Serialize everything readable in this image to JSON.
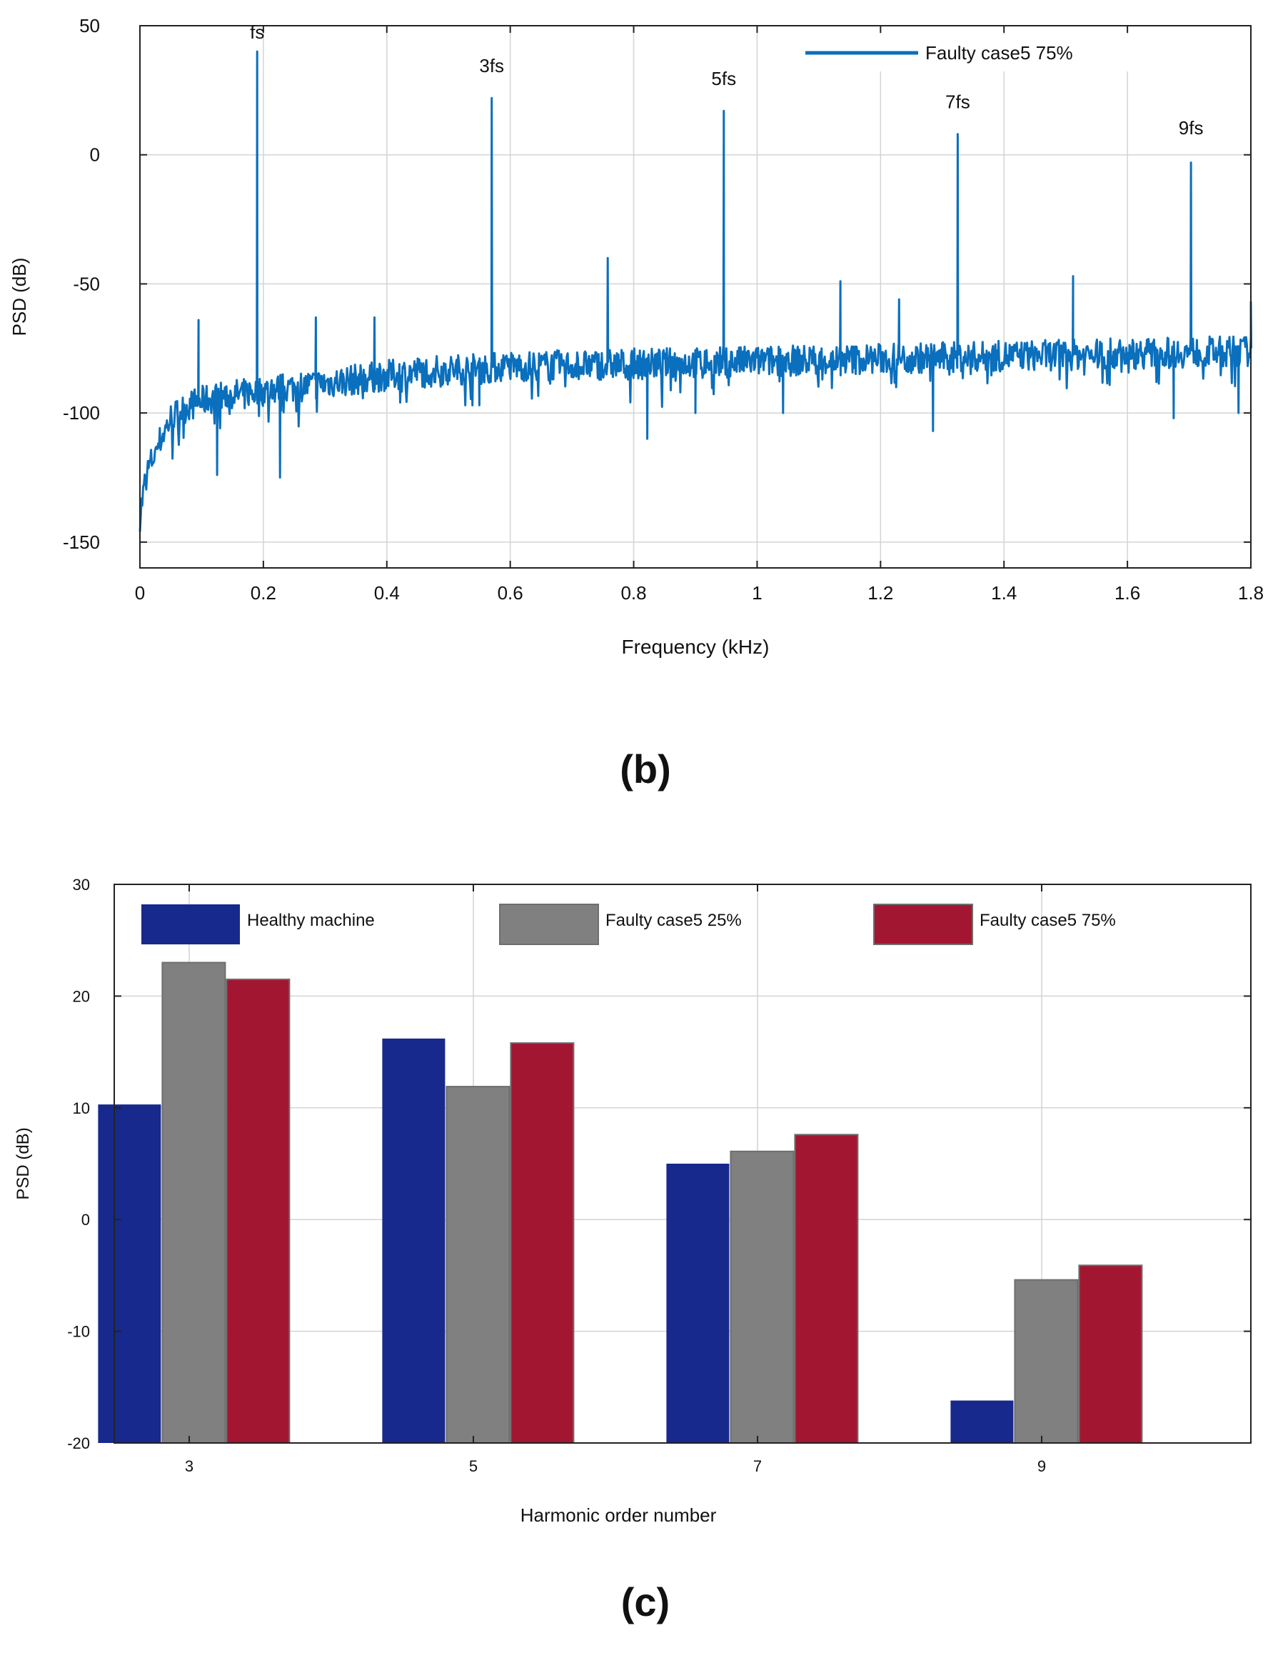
{
  "figure": {
    "panel_b_label": "(b)",
    "panel_c_label": "(c)"
  },
  "chart_data": [
    {
      "type": "line",
      "panel": "b",
      "title": "",
      "xlabel": "Frequency (kHz)",
      "ylabel": "PSD (dB)",
      "xlim": [
        0,
        1.8
      ],
      "ylim": [
        -160,
        50
      ],
      "xticks": [
        0,
        0.2,
        0.4,
        0.6,
        0.8,
        1,
        1.2,
        1.4,
        1.6,
        1.8
      ],
      "xtick_labels": [
        "0",
        "0.2",
        "0.4",
        "0.6",
        "0.8",
        "1",
        "1.2",
        "1.4",
        "1.6",
        "1.8"
      ],
      "yticks": [
        50,
        0,
        -50,
        -100,
        -150
      ],
      "ytick_labels": [
        "50",
        "0",
        "-50",
        "-100",
        "-150"
      ],
      "grid": true,
      "legend": {
        "position": "top-right"
      },
      "series": [
        {
          "name": "Faulty case5 75%",
          "color": "#0a6fbd",
          "baseline": [
            [
              0,
              -140
            ],
            [
              0.01,
              -124
            ],
            [
              0.03,
              -112
            ],
            [
              0.05,
              -102
            ],
            [
              0.08,
              -97
            ],
            [
              0.12,
              -94
            ],
            [
              0.18,
              -92
            ],
            [
              0.25,
              -90
            ],
            [
              0.35,
              -87
            ],
            [
              0.45,
              -84
            ],
            [
              0.6,
              -82
            ],
            [
              0.8,
              -81
            ],
            [
              1.0,
              -80
            ],
            [
              1.2,
              -79
            ],
            [
              1.4,
              -78
            ],
            [
              1.6,
              -77
            ],
            [
              1.8,
              -76
            ]
          ],
          "peaks": [
            {
              "x": 0.19,
              "y": 40
            },
            {
              "x": 0.57,
              "y": 22
            },
            {
              "x": 0.946,
              "y": 17
            },
            {
              "x": 1.325,
              "y": 8
            },
            {
              "x": 1.703,
              "y": -3
            },
            {
              "x": 0.758,
              "y": -40
            },
            {
              "x": 1.135,
              "y": -49
            },
            {
              "x": 1.512,
              "y": -47
            },
            {
              "x": 0.095,
              "y": -64
            },
            {
              "x": 0.285,
              "y": -63
            },
            {
              "x": 0.38,
              "y": -63
            },
            {
              "x": 1.23,
              "y": -56
            },
            {
              "x": 1.8,
              "y": -57
            }
          ],
          "dips": [
            {
              "x": 0.125,
              "y": -124
            },
            {
              "x": 0.227,
              "y": -125
            },
            {
              "x": 0.822,
              "y": -110
            },
            {
              "x": 1.285,
              "y": -107
            },
            {
              "x": 1.042,
              "y": -100
            },
            {
              "x": 1.675,
              "y": -102
            },
            {
              "x": 1.78,
              "y": -100
            },
            {
              "x": 0.55,
              "y": -97
            },
            {
              "x": 0.9,
              "y": -100
            }
          ]
        }
      ],
      "annotations": [
        {
          "text": "fs",
          "x": 0.19,
          "y": 45
        },
        {
          "text": "3fs",
          "x": 0.57,
          "y": 32
        },
        {
          "text": "5fs",
          "x": 0.946,
          "y": 27
        },
        {
          "text": "7fs",
          "x": 1.325,
          "y": 18
        },
        {
          "text": "9fs",
          "x": 1.703,
          "y": 8
        }
      ]
    },
    {
      "type": "bar",
      "panel": "c",
      "title": "",
      "xlabel": "Harmonic order number",
      "ylabel": "PSD (dB)",
      "categories": [
        "3",
        "5",
        "7",
        "9"
      ],
      "ylim": [
        -20,
        30
      ],
      "yticks": [
        30,
        20,
        10,
        0,
        -10,
        -20
      ],
      "ytick_labels": [
        "30",
        "20",
        "10",
        "0",
        "-10",
        "-20"
      ],
      "grid": true,
      "legend": {
        "position": "top"
      },
      "series": [
        {
          "name": "Healthy machine",
          "color": "#17298c",
          "values": [
            10.3,
            16.2,
            5.0,
            -16.2
          ]
        },
        {
          "name": "Faulty case5 25%",
          "color": "#808080",
          "values": [
            23.0,
            11.9,
            6.1,
            -5.4
          ]
        },
        {
          "name": "Faulty case5 75%",
          "color": "#a31631",
          "values": [
            21.5,
            15.8,
            7.6,
            -4.1
          ]
        }
      ]
    }
  ]
}
